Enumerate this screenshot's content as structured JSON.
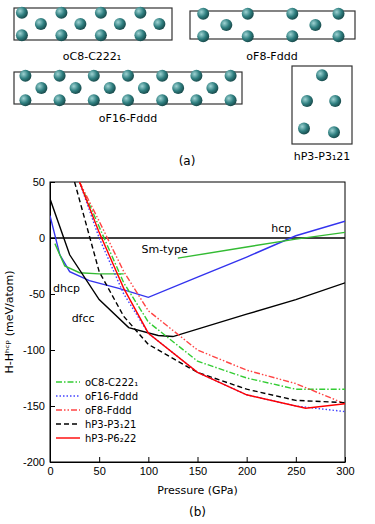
{
  "panel_labels": [
    "(a)",
    "(b)"
  ],
  "structures": [
    {
      "name": "oC8-C222₁",
      "atoms": [
        [
          0.05,
          0.15
        ],
        [
          0.3,
          0.15
        ],
        [
          0.55,
          0.15
        ],
        [
          0.8,
          0.15
        ],
        [
          0.17,
          0.5
        ],
        [
          0.42,
          0.5
        ],
        [
          0.67,
          0.5
        ],
        [
          0.92,
          0.5
        ],
        [
          0.05,
          0.85
        ],
        [
          0.3,
          0.85
        ],
        [
          0.55,
          0.85
        ],
        [
          0.8,
          0.85
        ]
      ]
    },
    {
      "name": "oF8-Fddd",
      "atoms": [
        [
          0.08,
          0.1
        ],
        [
          0.35,
          0.1
        ],
        [
          0.62,
          0.1
        ],
        [
          0.9,
          0.1
        ],
        [
          0.22,
          0.5
        ],
        [
          0.76,
          0.5
        ],
        [
          0.08,
          0.9
        ],
        [
          0.35,
          0.9
        ],
        [
          0.62,
          0.9
        ],
        [
          0.9,
          0.9
        ]
      ]
    },
    {
      "name": "oF16-Fddd",
      "atoms": [
        [
          0.05,
          0.12
        ],
        [
          0.2,
          0.12
        ],
        [
          0.35,
          0.12
        ],
        [
          0.5,
          0.12
        ],
        [
          0.65,
          0.12
        ],
        [
          0.8,
          0.12
        ],
        [
          0.95,
          0.12
        ],
        [
          0.12,
          0.5
        ],
        [
          0.27,
          0.5
        ],
        [
          0.42,
          0.5
        ],
        [
          0.57,
          0.5
        ],
        [
          0.72,
          0.5
        ],
        [
          0.87,
          0.5
        ],
        [
          0.05,
          0.88
        ],
        [
          0.2,
          0.88
        ],
        [
          0.35,
          0.88
        ],
        [
          0.5,
          0.88
        ],
        [
          0.65,
          0.88
        ],
        [
          0.8,
          0.88
        ],
        [
          0.95,
          0.88
        ]
      ]
    },
    {
      "name": "hP3-P3₁21",
      "atoms": [
        [
          0.5,
          0.12
        ],
        [
          0.25,
          0.45
        ],
        [
          0.72,
          0.45
        ],
        [
          0.2,
          0.8
        ],
        [
          0.7,
          0.85
        ]
      ]
    }
  ],
  "chart_data": {
    "type": "line",
    "xlabel": "Pressure (GPa)",
    "ylabel": "H-Hʰᶜᵖ (meV/atom)",
    "xlim": [
      0,
      300
    ],
    "ylim": [
      -200,
      50
    ],
    "xticks": [
      0,
      50,
      100,
      150,
      200,
      250,
      300
    ],
    "yticks": [
      -200,
      -150,
      -100,
      -50,
      0,
      50
    ],
    "legend": "lower left",
    "series": [
      {
        "name": "hcp",
        "color": "#000000",
        "line_style": "solid",
        "x": [
          0,
          300
        ],
        "values": [
          0,
          0
        ]
      },
      {
        "name": "dhcp",
        "color": "#3333ee",
        "line_style": "solid",
        "x": [
          0,
          10,
          20,
          40,
          70,
          100,
          150,
          200,
          250,
          300
        ],
        "values": [
          20,
          -15,
          -30,
          -38,
          -45,
          -53,
          -35,
          -17,
          2,
          15
        ]
      },
      {
        "name": "Sm-type",
        "color": "#33bb33",
        "line_style": "solid",
        "x": [
          5,
          15,
          30,
          50,
          75,
          100,
          130,
          200,
          250,
          300
        ],
        "values": [
          -5,
          -25,
          -31,
          -32,
          -32,
          null,
          -18,
          -8,
          -1,
          5
        ]
      },
      {
        "name": "dfcc",
        "color": "#000000",
        "line_style": "solid",
        "x": [
          0,
          20,
          50,
          80,
          110,
          125,
          200,
          250,
          300
        ],
        "values": [
          35,
          -15,
          -55,
          -80,
          -87,
          -88,
          -68,
          -55,
          -40
        ]
      },
      {
        "name": "oC8-C222₁",
        "color": "#33cc33",
        "line_style": "dashdot",
        "x": [
          30,
          50,
          75,
          100,
          150,
          200,
          250,
          300
        ],
        "values": [
          50,
          10,
          -40,
          -75,
          -110,
          -125,
          -135,
          -135
        ]
      },
      {
        "name": "oF16-Fddd",
        "color": "#4444ff",
        "line_style": "dotted",
        "x": [
          30,
          50,
          75,
          100,
          150,
          200,
          250,
          300
        ],
        "values": [
          50,
          0,
          -50,
          -85,
          -120,
          -140,
          -150,
          -155
        ]
      },
      {
        "name": "oF8-Fddd",
        "color": "#ff4444",
        "line_style": "dashdotdot",
        "x": [
          30,
          50,
          75,
          100,
          150,
          200,
          250,
          300
        ],
        "values": [
          50,
          15,
          -30,
          -65,
          -100,
          -118,
          -130,
          -148
        ]
      },
      {
        "name": "hP3-P3₁21",
        "color": "#000000",
        "line_style": "dashed",
        "x": [
          25,
          50,
          75,
          100,
          150,
          200,
          250,
          300
        ],
        "values": [
          50,
          -30,
          -70,
          -95,
          -120,
          -135,
          -145,
          -147
        ]
      },
      {
        "name": "hP3-P6₂22",
        "color": "#ff0000",
        "line_style": "solid",
        "x": [
          30,
          50,
          75,
          100,
          150,
          200,
          260,
          300
        ],
        "values": [
          50,
          5,
          -45,
          -85,
          -120,
          -140,
          -152,
          -148
        ]
      }
    ],
    "annotations": [
      {
        "series": 0,
        "x": 225,
        "y": 5
      },
      {
        "series": 1,
        "x": 3,
        "y": -48
      },
      {
        "series": 2,
        "x": 93,
        "y": -13
      },
      {
        "series": 3,
        "x": 22,
        "y": -75
      }
    ]
  }
}
